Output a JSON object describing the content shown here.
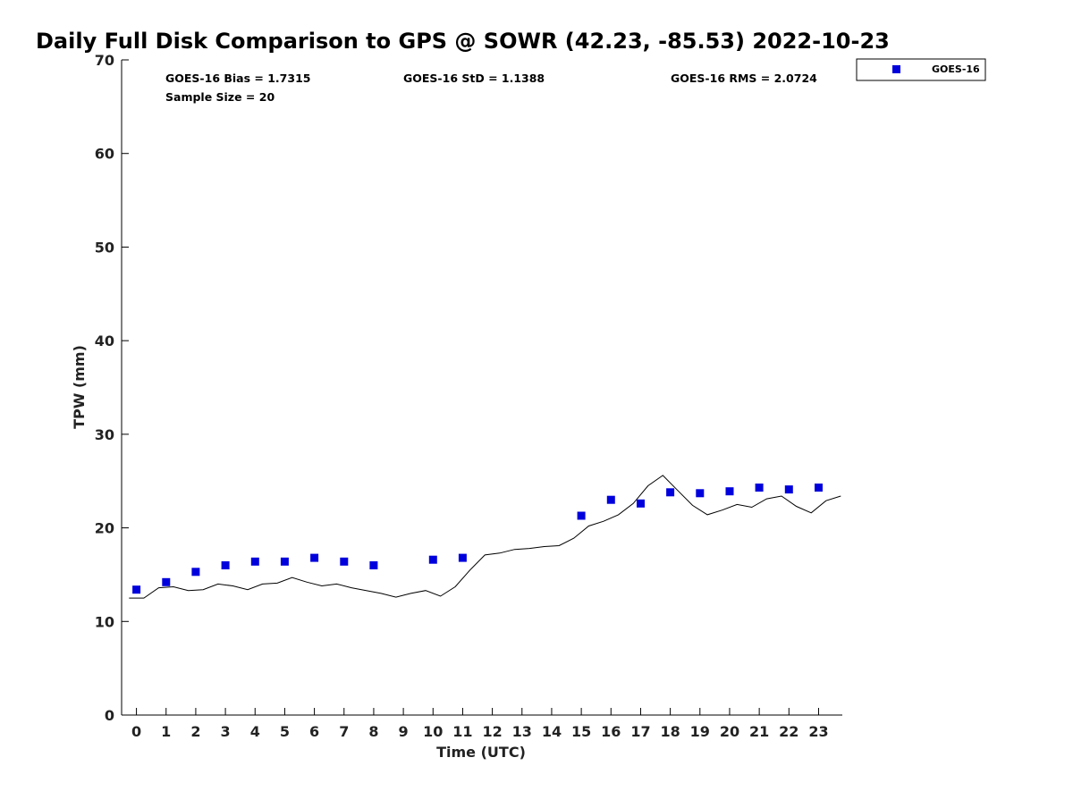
{
  "chart_data": {
    "type": "scatter",
    "title": "Daily Full Disk Comparison to GPS @ SOWR (42.23, -85.53) 2022-10-23",
    "xlabel": "Time (UTC)",
    "ylabel": "TPW (mm)",
    "xlim": [
      -0.5,
      23.8
    ],
    "ylim": [
      0,
      70
    ],
    "x_ticks": [
      0,
      1,
      2,
      3,
      4,
      5,
      6,
      7,
      8,
      9,
      10,
      11,
      12,
      13,
      14,
      15,
      16,
      17,
      18,
      19,
      20,
      21,
      22,
      23
    ],
    "y_ticks": [
      0,
      10,
      20,
      30,
      40,
      50,
      60,
      70
    ],
    "grid": false,
    "legend_position": "top-right",
    "stats": {
      "bias": "GOES-16 Bias = 1.7315",
      "std": "GOES-16 StD = 1.1388",
      "rms": "GOES-16 RMS = 2.0724",
      "sample_size": "Sample Size = 20"
    },
    "series": [
      {
        "name": "GOES-16",
        "kind": "scatter",
        "color": "#0000dd",
        "marker": "square",
        "x": [
          0,
          1,
          2,
          3,
          4,
          5,
          6,
          7,
          8,
          10,
          11,
          15,
          16,
          17,
          18,
          19,
          20,
          21,
          22,
          23
        ],
        "y": [
          13.4,
          14.2,
          15.3,
          16.0,
          16.4,
          16.4,
          16.8,
          16.4,
          16.0,
          16.6,
          16.8,
          21.3,
          23.0,
          22.6,
          23.8,
          23.7,
          23.9,
          24.3,
          24.1,
          24.3
        ]
      },
      {
        "kind": "line",
        "color": "#000000",
        "x": [
          -0.25,
          0.25,
          0.75,
          1.25,
          1.75,
          2.25,
          2.75,
          3.25,
          3.75,
          4.25,
          4.75,
          5.25,
          5.75,
          6.25,
          6.75,
          7.25,
          7.75,
          8.25,
          8.75,
          9.25,
          9.75,
          10.25,
          10.75,
          11.25,
          11.75,
          12.25,
          12.75,
          13.25,
          13.75,
          14.25,
          14.75,
          15.25,
          15.75,
          16.25,
          16.75,
          17.25,
          17.75,
          18.25,
          18.75,
          19.25,
          19.75,
          20.25,
          20.75,
          21.25,
          21.75,
          22.25,
          22.75,
          23.25,
          23.75
        ],
        "y": [
          12.5,
          12.5,
          13.6,
          13.7,
          13.3,
          13.4,
          14.0,
          13.8,
          13.4,
          14.0,
          14.1,
          14.7,
          14.2,
          13.8,
          14.0,
          13.6,
          13.3,
          13.0,
          12.6,
          13.0,
          13.3,
          12.7,
          13.7,
          15.5,
          17.1,
          17.3,
          17.7,
          17.8,
          18.0,
          18.1,
          18.9,
          20.2,
          20.7,
          21.4,
          22.6,
          24.5,
          25.6,
          24.0,
          22.4,
          21.4,
          21.9,
          22.5,
          22.2,
          23.1,
          23.4,
          22.3,
          21.6,
          22.9,
          23.4
        ]
      }
    ]
  }
}
